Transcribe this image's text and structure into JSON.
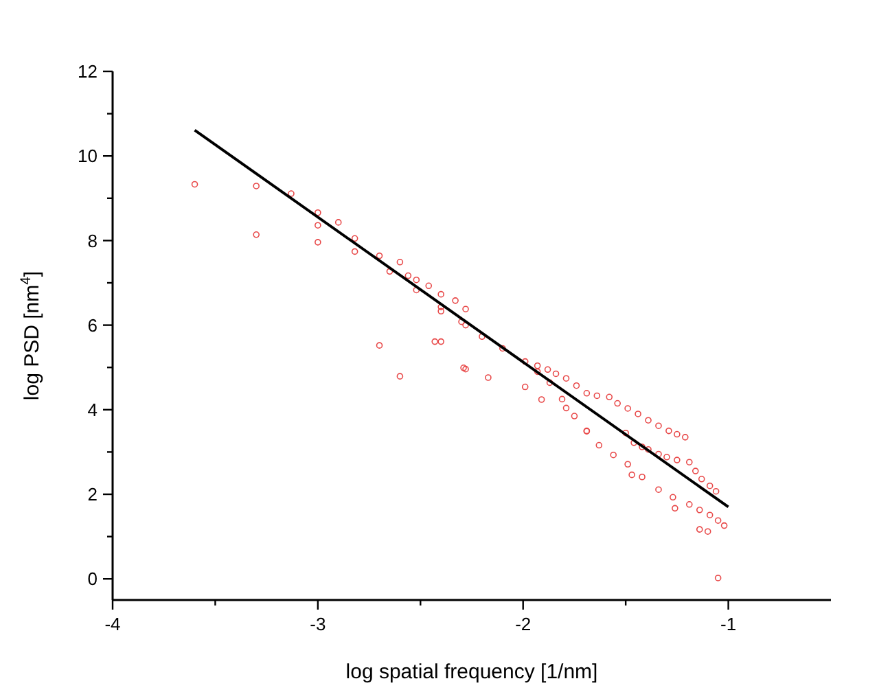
{
  "chart_data": {
    "type": "scatter",
    "xlabel": "log spatial frequency [1/nm]",
    "ylabel": "log PSD [nm$^{4}$]",
    "xlim": [
      -4,
      -0.5
    ],
    "ylim": [
      -0.5,
      12
    ],
    "xticks": [
      -4,
      {
        "value": -3.5,
        "label": null
      },
      -3,
      {
        "value": -2.5,
        "label": null
      },
      -2,
      {
        "value": -1.5,
        "label": null
      },
      -1
    ],
    "yticks": [
      0,
      {
        "value": 1,
        "label": null
      },
      2,
      {
        "value": 3,
        "label": null
      },
      4,
      {
        "value": 5,
        "label": null
      },
      6,
      {
        "value": 7,
        "label": null
      },
      8,
      {
        "value": 9,
        "label": null
      },
      10,
      {
        "value": 11,
        "label": null
      },
      12
    ],
    "grid": false,
    "series": [
      {
        "marker": "circle",
        "color": "#e84848",
        "x": [
          -3.6,
          -3.3,
          -3.3,
          -3.13,
          -3.0,
          -3.0,
          -3.0,
          -2.9,
          -2.82,
          -2.82,
          -2.7,
          -2.7,
          -2.65,
          -2.6,
          -2.6,
          -2.56,
          -2.52,
          -2.52,
          -2.46,
          -2.43,
          -2.4,
          -2.4,
          -2.4,
          -2.33,
          -2.28,
          -2.28,
          -2.28,
          -2.29,
          -2.17,
          -1.99,
          -1.91,
          -1.79,
          -1.69,
          -1.47,
          -1.26,
          -1.14,
          -1.1,
          -1.05,
          -1.93,
          -1.88,
          -1.84,
          -1.79,
          -1.74,
          -1.69,
          -1.64,
          -1.58,
          -1.54,
          -1.49,
          -1.44,
          -1.39,
          -1.34,
          -1.29,
          -1.25,
          -1.21,
          -1.5,
          -1.46,
          -1.42,
          -1.39,
          -1.34,
          -1.3,
          -1.25,
          -1.19,
          -1.16,
          -1.13,
          -1.09,
          -1.06,
          -2.4,
          -2.3,
          -2.2,
          -2.1,
          -1.99,
          -1.93,
          -1.87,
          -1.81,
          -1.75,
          -1.69,
          -1.63,
          -1.56,
          -1.49,
          -1.42,
          -1.34,
          -1.27,
          -1.19,
          -1.14,
          -1.09,
          -1.05,
          -1.02
        ],
        "values": [
          9.33,
          9.29,
          8.14,
          9.11,
          8.66,
          8.36,
          7.96,
          8.43,
          8.05,
          7.74,
          7.64,
          5.52,
          7.27,
          7.49,
          4.79,
          7.17,
          7.07,
          6.83,
          6.93,
          5.61,
          5.61,
          6.73,
          6.33,
          6.58,
          6.38,
          6.0,
          4.96,
          4.99,
          4.76,
          4.54,
          4.24,
          4.04,
          3.49,
          2.46,
          1.67,
          1.17,
          1.12,
          0.02,
          5.04,
          4.95,
          4.85,
          4.74,
          4.57,
          4.39,
          4.33,
          4.3,
          4.15,
          4.03,
          3.9,
          3.75,
          3.62,
          3.5,
          3.42,
          3.35,
          3.45,
          3.22,
          3.12,
          3.06,
          2.95,
          2.88,
          2.81,
          2.76,
          2.55,
          2.36,
          2.2,
          2.07,
          6.43,
          6.08,
          5.73,
          5.45,
          5.14,
          4.9,
          4.64,
          4.25,
          3.85,
          3.5,
          3.16,
          2.93,
          2.71,
          2.41,
          2.11,
          1.93,
          1.76,
          1.63,
          1.51,
          1.38,
          1.26
        ]
      },
      {
        "type": "line",
        "marker": "none",
        "line_style": "solid",
        "color": "#000000",
        "x": [
          -3.6,
          -1.0
        ],
        "values": [
          10.61,
          1.7
        ]
      }
    ]
  }
}
